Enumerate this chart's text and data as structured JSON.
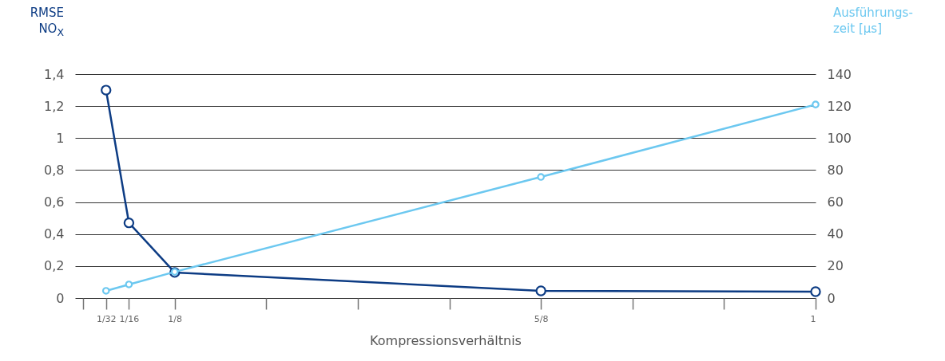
{
  "chart_data": {
    "type": "line",
    "xlabel": "Kompressionsverhältnis",
    "ylabel": "RMSE\nNO$_{X}$",
    "y2label": "Ausführungs-\nzeit [µs]",
    "x": [
      0.03125,
      0.0625,
      0.125,
      0.625,
      1
    ],
    "xlim": [
      -0.011,
      1
    ],
    "xticks": [
      {
        "value": 0,
        "label": null
      },
      {
        "value": 0.03125,
        "label": "1/32"
      },
      {
        "value": 0.0625,
        "label": "1/16"
      },
      {
        "value": 0.125,
        "label": "1/8"
      },
      {
        "value": 0.25,
        "label": null
      },
      {
        "value": 0.375,
        "label": null
      },
      {
        "value": 0.5,
        "label": null
      },
      {
        "value": 0.625,
        "label": "5/8"
      },
      {
        "value": 0.75,
        "label": null
      },
      {
        "value": 0.875,
        "label": null
      },
      {
        "value": 1,
        "label": "1"
      }
    ],
    "ylim": [
      0,
      1.4
    ],
    "yticks": [
      0,
      {
        "value": 0.2,
        "label": "0,2"
      },
      {
        "value": 0.4,
        "label": "0,4"
      },
      {
        "value": 0.6,
        "label": "0,6"
      },
      {
        "value": 0.8,
        "label": "0,8"
      },
      1,
      {
        "value": 1.2,
        "label": "1,2"
      },
      {
        "value": 1.4,
        "label": "1,4"
      }
    ],
    "y2lim": [
      0,
      140
    ],
    "y2ticks": [
      0,
      20,
      40,
      60,
      80,
      100,
      120,
      140
    ],
    "series": [
      {
        "color": "#0d3c84",
        "values": [
          1.3,
          0.47,
          0.16,
          0.045,
          0.04
        ]
      },
      {
        "color": "#6cc8f0",
        "axis": "y2",
        "values": [
          4.5,
          8.5,
          16.4,
          75.7,
          121
        ]
      }
    ],
    "grid": "y",
    "marker": "circle",
    "line_style": "solid"
  }
}
